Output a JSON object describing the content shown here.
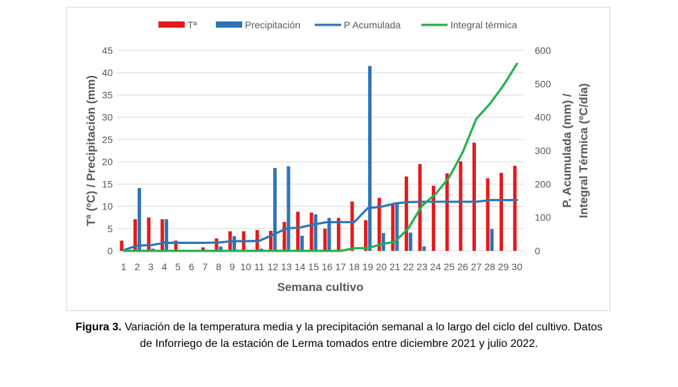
{
  "chart_data": {
    "type": "bar",
    "title": "",
    "xlabel": "Semana cultivo",
    "ylabel_left": "Tª (ºC) / Precipitación (mm)",
    "ylabel_right": "P. Acumulada (mm) / Integral Térmica (ºC/día)",
    "ylim_left": [
      0,
      45
    ],
    "ylim_right": [
      0,
      600
    ],
    "yticks_left": [
      "0",
      "5",
      "10",
      "15",
      "20",
      "25",
      "30",
      "35",
      "40",
      "45"
    ],
    "yticks_right": [
      "0",
      "100",
      "200",
      "300",
      "400",
      "500",
      "600"
    ],
    "legend_position": "top",
    "grid": true,
    "categories": [
      "1",
      "2",
      "3",
      "4",
      "5",
      "6",
      "7",
      "8",
      "9",
      "10",
      "11",
      "12",
      "13",
      "14",
      "15",
      "16",
      "17",
      "18",
      "19",
      "20",
      "21",
      "22",
      "23",
      "24",
      "25",
      "26",
      "27",
      "28",
      "29",
      "30"
    ],
    "series": [
      {
        "name": "Tª",
        "kind": "bar",
        "axis": "left",
        "color": "#e31a1c",
        "values": [
          2.3,
          7.1,
          7.5,
          7.1,
          2.3,
          0,
          0.8,
          2.8,
          4.4,
          4.4,
          4.7,
          4.5,
          6.5,
          8.8,
          8.6,
          5.0,
          7.4,
          11.1,
          6.9,
          11.9,
          10.6,
          16.7,
          19.5,
          14.6,
          17.4,
          20.1,
          24.3,
          16.3,
          17.5,
          19.1
        ]
      },
      {
        "name": "Precipitación",
        "kind": "bar",
        "axis": "left",
        "color": "#2e75b6",
        "values": [
          0.3,
          14.1,
          0.5,
          7.1,
          0,
          0,
          0,
          1.0,
          3.3,
          0,
          0.5,
          18.6,
          19.0,
          3.4,
          8.2,
          7.4,
          0,
          0,
          41.5,
          4.0,
          10.6,
          4.1,
          1.0,
          0,
          0,
          0,
          0,
          4.9,
          0,
          0
        ]
      },
      {
        "name": "P Acumulada",
        "kind": "line",
        "axis": "right",
        "color": "#2e75b6",
        "values": [
          2,
          16,
          17,
          24,
          24,
          24,
          24,
          25,
          29,
          29,
          30,
          48,
          67,
          70,
          79,
          86,
          86,
          86,
          128,
          132,
          142,
          146,
          147,
          147,
          147,
          147,
          147,
          152,
          152,
          152
        ]
      },
      {
        "name": "Integral térmica",
        "kind": "line",
        "axis": "right",
        "color": "#22b14c",
        "values": [
          0,
          0,
          0,
          0,
          0,
          0,
          0,
          0,
          0,
          0,
          0,
          0,
          0,
          0,
          0,
          0,
          0,
          8,
          8,
          20,
          27,
          68,
          135,
          170,
          220,
          295,
          395,
          440,
          495,
          560
        ]
      }
    ]
  },
  "caption": {
    "label": "Figura 3.",
    "text": " Variación de la temperatura media y la precipitación semanal a lo largo del ciclo del cultivo. Datos de Inforriego de la estación de Lerma tomados entre diciembre 2021 y julio 2022."
  }
}
